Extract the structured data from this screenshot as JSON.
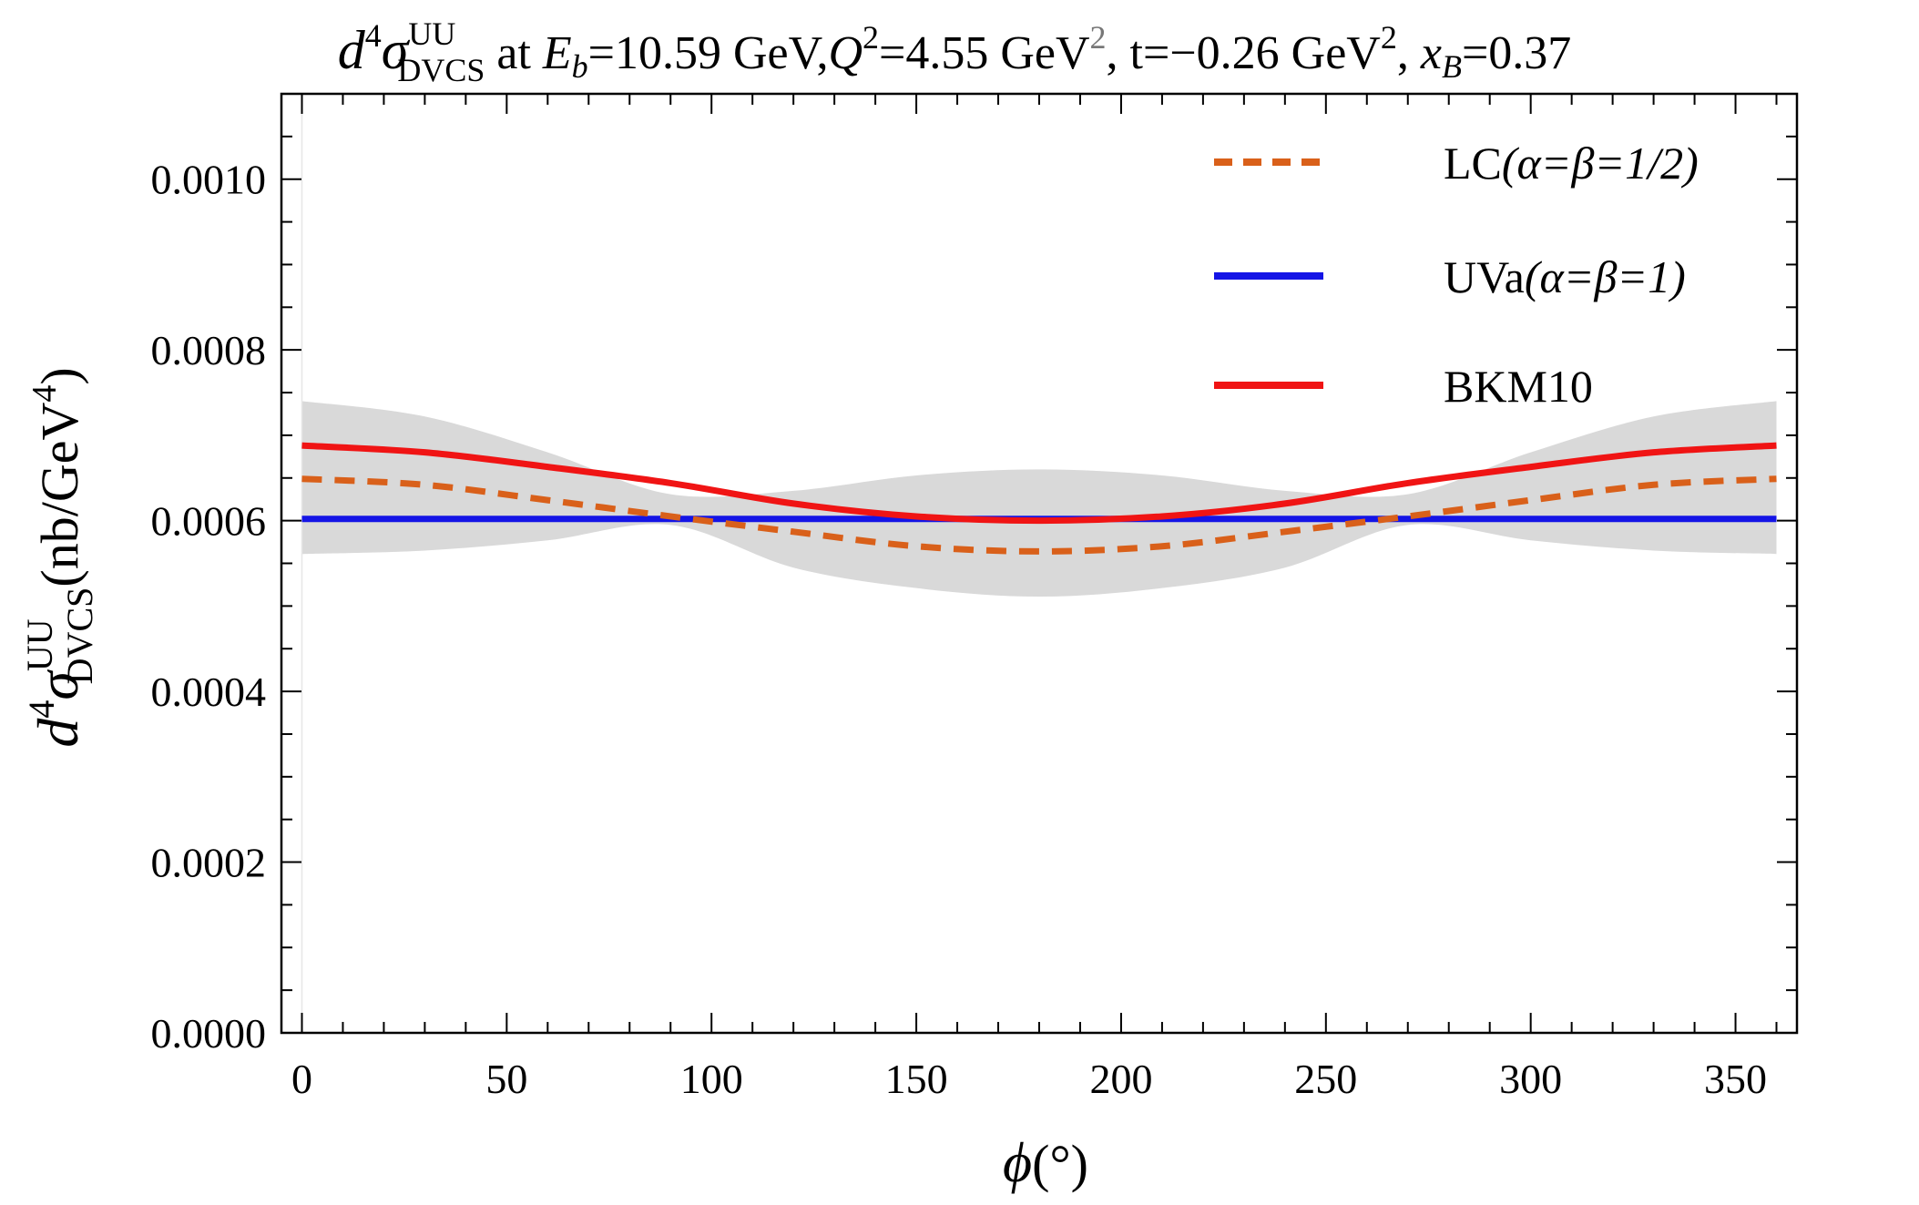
{
  "chart_data": {
    "type": "line",
    "title": {
      "d": "d",
      "four": "4",
      "sigma": "σ",
      "uu": "UU",
      "dvcs": "DVCS",
      "at": " at ",
      "E": "E",
      "b": "b",
      "eb_value": "=10.59 GeV,",
      "Q": "Q",
      "two": "2",
      "q2_value": "=4.55 GeV",
      "q2_exp": "2",
      "t_value": ", t=−0.26 GeV",
      "t_exp": "2",
      "comma": ", ",
      "x": "x",
      "B": "B",
      "xb_value": "=0.37"
    },
    "xlabel": {
      "phi": "ϕ",
      "unit": "(°)"
    },
    "ylabel": {
      "d": "d",
      "four": "4",
      "sigma": "σ",
      "uu": "UU",
      "dvcs": "DVCS",
      "unit_open": "(nb/GeV",
      "unit_exp": "4",
      "unit_close": ")"
    },
    "xlim": [
      -5,
      365
    ],
    "ylim": [
      0,
      0.0011
    ],
    "x_ticks": [
      0,
      50,
      100,
      150,
      200,
      250,
      300,
      350
    ],
    "x_tick_labels": [
      "0",
      "50",
      "100",
      "150",
      "200",
      "250",
      "300",
      "350"
    ],
    "y_ticks": [
      0,
      0.0002,
      0.0004,
      0.0006,
      0.0008,
      0.001
    ],
    "y_tick_labels": [
      "0.0000",
      "0.0002",
      "0.0004",
      "0.0006",
      "0.0008",
      "0.0010"
    ],
    "series": [
      {
        "name": "UVa",
        "label": "UVa",
        "label_greek": "(α=β=1)",
        "style": "solid",
        "color": "#1414e6",
        "x": [
          0,
          360
        ],
        "values": [
          0.000602,
          0.000602
        ]
      },
      {
        "name": "BKM10",
        "label": "BKM10",
        "label_greek": "",
        "style": "solid",
        "color": "#f01414",
        "x": [
          0,
          30,
          60,
          90,
          120,
          150,
          180,
          210,
          240,
          270,
          300,
          330,
          360
        ],
        "values": [
          0.000688,
          0.00068,
          0.000663,
          0.000644,
          0.00062,
          0.000605,
          0.0006,
          0.000605,
          0.00062,
          0.000644,
          0.000663,
          0.00068,
          0.000688
        ]
      },
      {
        "name": "LC",
        "label": "LC",
        "label_greek": "(α=β=1/2)",
        "style": "dashed",
        "color": "#d9601a",
        "x": [
          0,
          30,
          60,
          90,
          120,
          150,
          180,
          210,
          240,
          270,
          300,
          330,
          360
        ],
        "values": [
          0.000649,
          0.000642,
          0.000624,
          0.000605,
          0.000587,
          0.00057,
          0.000564,
          0.00057,
          0.000587,
          0.000605,
          0.000624,
          0.000642,
          0.000649
        ]
      }
    ],
    "band": {
      "name": "uncertainty-band",
      "color": "#d9d9d9",
      "x": [
        0,
        30,
        60,
        90,
        120,
        150,
        180,
        210,
        240,
        270,
        300,
        330,
        360
      ],
      "upper": [
        0.00074,
        0.000722,
        0.00068,
        0.000631,
        0.000635,
        0.000653,
        0.00066,
        0.000653,
        0.000635,
        0.000631,
        0.00068,
        0.000722,
        0.00074
      ],
      "lower": [
        0.000561,
        0.000565,
        0.000577,
        0.000595,
        0.000545,
        0.000521,
        0.000511,
        0.000521,
        0.000545,
        0.000595,
        0.000577,
        0.000565,
        0.000561
      ]
    },
    "legend_position": "top-right",
    "legend_order": [
      "LC",
      "UVa",
      "BKM10"
    ],
    "grid": false
  }
}
